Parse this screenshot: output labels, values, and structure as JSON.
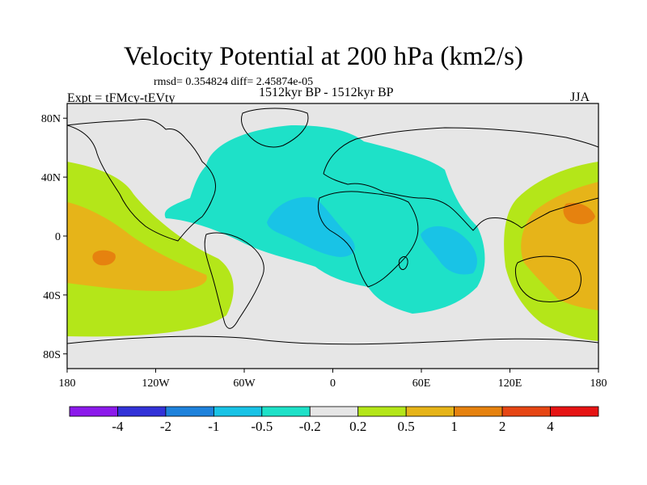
{
  "title": "Velocity Potential at 200 hPa (km2/s)",
  "stats_text": "rmsd= 0.354824 diff= 2.45874e-05",
  "left_label": "Expt = tFMcy-tEVty",
  "center_label": "1512kyr BP - 1512kyr BP",
  "right_label": "JJA",
  "map": {
    "lon_range": [
      -180,
      180
    ],
    "lat_range": [
      -90,
      90
    ],
    "y_ticks": [
      {
        "lat": 80,
        "label": "80N"
      },
      {
        "lat": 40,
        "label": "40N"
      },
      {
        "lat": 0,
        "label": "0"
      },
      {
        "lat": -40,
        "label": "40S"
      },
      {
        "lat": -80,
        "label": "80S"
      }
    ],
    "x_ticks": [
      {
        "lon": -180,
        "label": "180"
      },
      {
        "lon": -120,
        "label": "120W"
      },
      {
        "lon": -60,
        "label": "60W"
      },
      {
        "lon": 0,
        "label": "0"
      },
      {
        "lon": 60,
        "label": "60E"
      },
      {
        "lon": 120,
        "label": "120E"
      },
      {
        "lon": 180,
        "label": "180"
      }
    ],
    "background_color": "#e6e6e6"
  },
  "colorbar": {
    "colors": [
      "#8c1aeb",
      "#3232d8",
      "#1e82dc",
      "#19c3e6",
      "#1ee1c8",
      "#e6e6e6",
      "#b4e619",
      "#e6b419",
      "#e6820f",
      "#e64614",
      "#e61414"
    ],
    "labels": [
      "-4",
      "-2",
      "-1",
      "-0.5",
      "-0.2",
      "0.2",
      "0.5",
      "1",
      "2",
      "4"
    ]
  }
}
